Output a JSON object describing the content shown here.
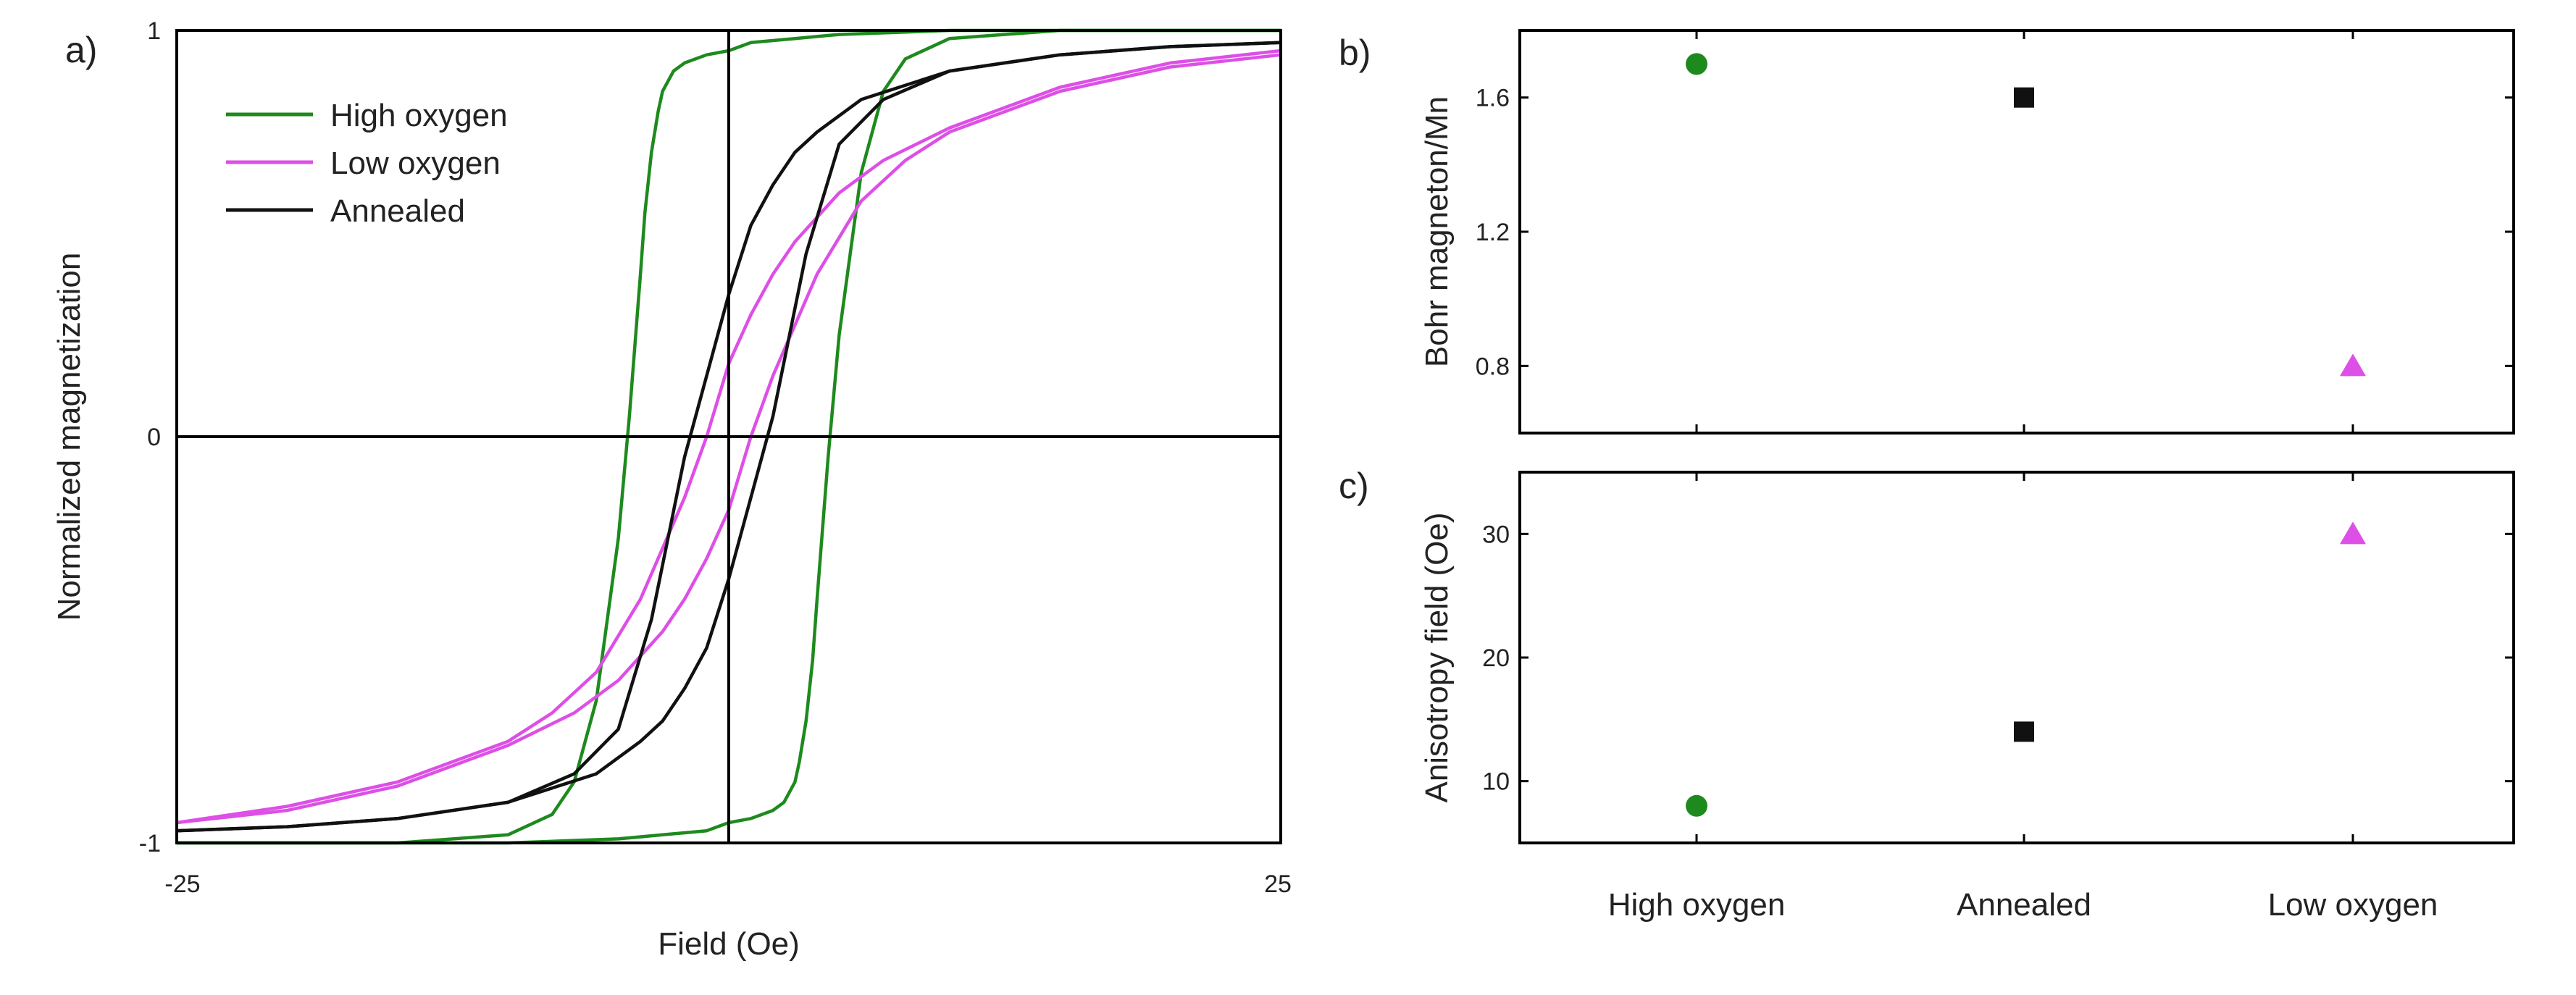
{
  "chart_data": [
    {
      "panel_label": "a)",
      "type": "line",
      "title": "",
      "xlabel": "Field (Oe)",
      "ylabel": "Normalized magnetization",
      "xlim": [
        -25,
        25
      ],
      "ylim": [
        -1,
        1
      ],
      "x_ticks": [
        "-25",
        "25"
      ],
      "y_ticks": [
        "-1",
        "0",
        "1"
      ],
      "legend": [
        "High oxygen",
        "Low oxygen",
        "Annealed"
      ],
      "legend_position": "top-left",
      "series": [
        {
          "name": "High oxygen",
          "color": "#1e8a1e",
          "branches": [
            {
              "x": [
                -25,
                -15,
                -10,
                -8,
                -7,
                -6,
                -5,
                -4.5,
                -4,
                -3.8,
                -3.5,
                -3.2,
                -3,
                -2.5,
                -2,
                -1,
                0,
                1,
                3,
                5,
                10,
                15,
                25
              ],
              "y": [
                -1,
                -1,
                -0.98,
                -0.93,
                -0.85,
                -0.65,
                -0.25,
                0.05,
                0.4,
                0.55,
                0.7,
                0.8,
                0.85,
                0.9,
                0.92,
                0.94,
                0.95,
                0.97,
                0.98,
                0.99,
                1,
                1,
                1
              ]
            },
            {
              "x": [
                25,
                15,
                10,
                8,
                7,
                6,
                5,
                4.5,
                4,
                3.8,
                3.5,
                3.2,
                3,
                2.5,
                2,
                1,
                0,
                -1,
                -3,
                -5,
                -10,
                -15,
                -25
              ],
              "y": [
                1,
                1,
                0.98,
                0.93,
                0.85,
                0.65,
                0.25,
                -0.05,
                -0.4,
                -0.55,
                -0.7,
                -0.8,
                -0.85,
                -0.9,
                -0.92,
                -0.94,
                -0.95,
                -0.97,
                -0.98,
                -0.99,
                -1,
                -1,
                -1
              ]
            }
          ]
        },
        {
          "name": "Low oxygen",
          "color": "#dd4fe6",
          "branches": [
            {
              "x": [
                -25,
                -20,
                -15,
                -10,
                -7,
                -5,
                -3,
                -2,
                -1,
                0,
                1,
                2,
                4,
                6,
                8,
                10,
                15,
                20,
                25
              ],
              "y": [
                -0.95,
                -0.92,
                -0.86,
                -0.76,
                -0.68,
                -0.6,
                -0.48,
                -0.4,
                -0.3,
                -0.18,
                0,
                0.15,
                0.4,
                0.58,
                0.68,
                0.75,
                0.85,
                0.91,
                0.94
              ]
            },
            {
              "x": [
                25,
                20,
                15,
                10,
                7,
                5,
                3,
                2,
                1,
                0,
                -1,
                -2,
                -4,
                -6,
                -8,
                -10,
                -15,
                -20,
                -25
              ],
              "y": [
                0.95,
                0.92,
                0.86,
                0.76,
                0.68,
                0.6,
                0.48,
                0.4,
                0.3,
                0.18,
                0,
                -0.15,
                -0.4,
                -0.58,
                -0.68,
                -0.75,
                -0.85,
                -0.91,
                -0.95
              ]
            }
          ]
        },
        {
          "name": "Annealed",
          "color": "#111111",
          "branches": [
            {
              "x": [
                -25,
                -20,
                -15,
                -10,
                -7,
                -5,
                -3.5,
                -2,
                -1,
                0,
                1,
                2,
                3,
                4,
                6,
                10,
                15,
                20,
                25
              ],
              "y": [
                -0.97,
                -0.96,
                -0.94,
                -0.9,
                -0.83,
                -0.72,
                -0.45,
                -0.05,
                0.15,
                0.35,
                0.52,
                0.62,
                0.7,
                0.75,
                0.83,
                0.9,
                0.94,
                0.96,
                0.97
              ]
            },
            {
              "x": [
                25,
                20,
                15,
                10,
                7,
                5,
                3.5,
                2,
                1,
                0,
                -1,
                -2,
                -3,
                -4,
                -6,
                -10,
                -15,
                -20,
                -25
              ],
              "y": [
                0.97,
                0.96,
                0.94,
                0.9,
                0.83,
                0.72,
                0.45,
                0.05,
                -0.15,
                -0.35,
                -0.52,
                -0.62,
                -0.7,
                -0.75,
                -0.83,
                -0.9,
                -0.94,
                -0.96,
                -0.97
              ]
            }
          ]
        }
      ]
    },
    {
      "panel_label": "b)",
      "type": "scatter",
      "title": "",
      "xlabel": "",
      "ylabel": "Bohr magneton/Mn",
      "ylim": [
        0.6,
        1.8
      ],
      "y_ticks": [
        "0.8",
        "1.2",
        "1.6"
      ],
      "categories": [
        "High oxygen",
        "Annealed",
        "Low oxygen"
      ],
      "values": [
        1.7,
        1.6,
        0.8
      ],
      "markers": [
        "circle",
        "square",
        "triangle"
      ],
      "colors": [
        "#1e8a1e",
        "#111111",
        "#dd4fe6"
      ]
    },
    {
      "panel_label": "c)",
      "type": "scatter",
      "title": "",
      "xlabel": "",
      "ylabel": "Anisotropy field (Oe)",
      "ylim": [
        5,
        35
      ],
      "y_ticks": [
        "10",
        "20",
        "30"
      ],
      "categories": [
        "High oxygen",
        "Annealed",
        "Low oxygen"
      ],
      "values": [
        8,
        14,
        30
      ],
      "markers": [
        "circle",
        "square",
        "triangle"
      ],
      "colors": [
        "#1e8a1e",
        "#111111",
        "#dd4fe6"
      ]
    }
  ]
}
